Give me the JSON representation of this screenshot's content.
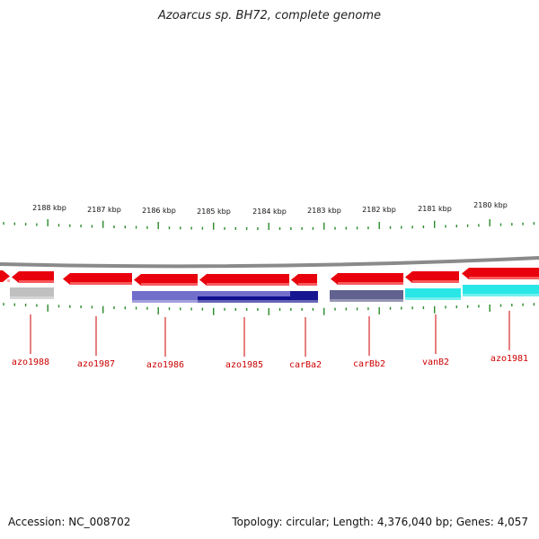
{
  "title": "Azoarcus sp. BH72, complete genome",
  "footer": {
    "accession": "Accession: NC_008702",
    "summary": "Topology: circular; Length: 4,376,040 bp; Genes: 4,057"
  },
  "colors": {
    "gene_forward": "#e8000c",
    "backbone": "#8a8a8a",
    "tick": "#2a8a2a",
    "label": "#cc0000",
    "grey_feature": "#bdbdbd",
    "purple_feature": "#6a66c8",
    "navy_feature": "#0a0a8a",
    "slate_feature": "#5a5a8a",
    "cyan_feature": "#1fe6e6"
  },
  "kbp_ticks": [
    "2188 kbp",
    "2187 kbp",
    "2186 kbp",
    "2185 kbp",
    "2184 kbp",
    "2183 kbp",
    "2182 kbp",
    "2181 kbp",
    "2180 kbp"
  ],
  "genes": [
    "azo1988",
    "azo1987",
    "azo1986",
    "azo1985",
    "carBa2",
    "carBb2",
    "vanB2",
    "azo1981"
  ]
}
